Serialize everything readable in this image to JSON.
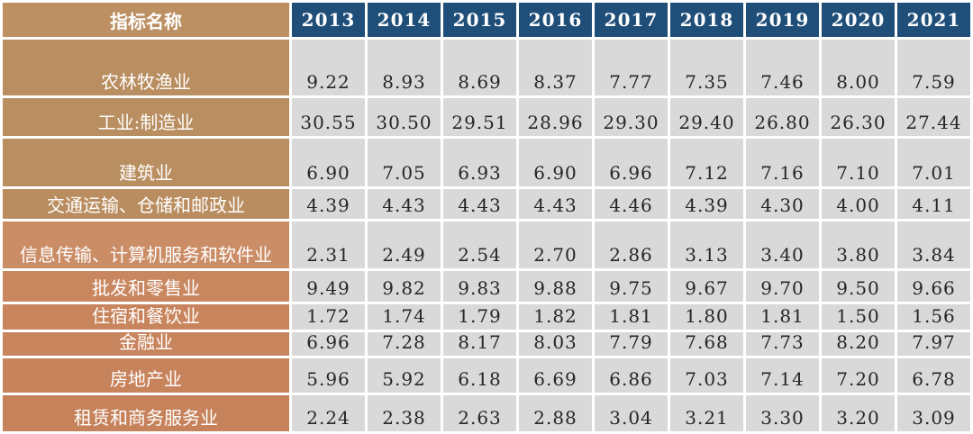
{
  "table": {
    "header": {
      "label": "指标名称",
      "label_bg": "#bc9062",
      "year_bg": "#1f4e79",
      "years": [
        "2013",
        "2014",
        "2015",
        "2016",
        "2017",
        "2018",
        "2019",
        "2020",
        "2021"
      ]
    },
    "value_cell_bg": "#d9d9d9",
    "value_text_color": "#262626",
    "rows": [
      {
        "label": "农林牧渔业",
        "label_bg": "#b98e61",
        "values": [
          "9.22",
          "8.93",
          "8.69",
          "8.37",
          "7.77",
          "7.35",
          "7.46",
          "8.00",
          "7.59"
        ]
      },
      {
        "label": "工业:制造业",
        "label_bg": "#b98e61",
        "values": [
          "30.55",
          "30.50",
          "29.51",
          "28.96",
          "29.30",
          "29.40",
          "26.80",
          "26.30",
          "27.44"
        ]
      },
      {
        "label": "建筑业",
        "label_bg": "#b98e61",
        "values": [
          "6.90",
          "7.05",
          "6.93",
          "6.90",
          "6.96",
          "7.12",
          "7.16",
          "7.10",
          "7.01"
        ]
      },
      {
        "label": "交通运输、仓储和邮政业",
        "label_bg": "#ba8d60",
        "values": [
          "4.39",
          "4.43",
          "4.43",
          "4.43",
          "4.46",
          "4.39",
          "4.30",
          "4.00",
          "4.11"
        ]
      },
      {
        "label": "信息传输、计算机服务和软件业",
        "label_bg": "#cb8d66",
        "values": [
          "2.31",
          "2.49",
          "2.54",
          "2.70",
          "2.86",
          "3.13",
          "3.40",
          "3.80",
          "3.84"
        ]
      },
      {
        "label": "批发和零售业",
        "label_bg": "#c8875f",
        "values": [
          "9.49",
          "9.82",
          "9.83",
          "9.88",
          "9.75",
          "9.67",
          "9.70",
          "9.50",
          "9.66"
        ]
      },
      {
        "label": "住宿和餐饮业",
        "label_bg": "#c8855d",
        "values": [
          "1.72",
          "1.74",
          "1.79",
          "1.82",
          "1.81",
          "1.80",
          "1.81",
          "1.50",
          "1.56"
        ]
      },
      {
        "label": "金融业",
        "label_bg": "#c8845c",
        "values": [
          "6.96",
          "7.28",
          "8.17",
          "8.03",
          "7.79",
          "7.68",
          "7.73",
          "8.20",
          "7.97"
        ]
      },
      {
        "label": "房地产业",
        "label_bg": "#c7835b",
        "values": [
          "5.96",
          "5.92",
          "6.18",
          "6.69",
          "6.86",
          "7.03",
          "7.14",
          "7.20",
          "6.78"
        ]
      },
      {
        "label": "租赁和商务服务业",
        "label_bg": "#c6825a",
        "values": [
          "2.24",
          "2.38",
          "2.63",
          "2.88",
          "3.04",
          "3.21",
          "3.30",
          "3.20",
          "3.09"
        ]
      }
    ]
  },
  "chart_data": {
    "type": "table",
    "title": "",
    "categories": [
      "2013",
      "2014",
      "2015",
      "2016",
      "2017",
      "2018",
      "2019",
      "2020",
      "2021"
    ],
    "row_header_label": "指标名称",
    "series": [
      {
        "name": "农林牧渔业",
        "values": [
          9.22,
          8.93,
          8.69,
          8.37,
          7.77,
          7.35,
          7.46,
          8.0,
          7.59
        ]
      },
      {
        "name": "工业:制造业",
        "values": [
          30.55,
          30.5,
          29.51,
          28.96,
          29.3,
          29.4,
          26.8,
          26.3,
          27.44
        ]
      },
      {
        "name": "建筑业",
        "values": [
          6.9,
          7.05,
          6.93,
          6.9,
          6.96,
          7.12,
          7.16,
          7.1,
          7.01
        ]
      },
      {
        "name": "交通运输、仓储和邮政业",
        "values": [
          4.39,
          4.43,
          4.43,
          4.43,
          4.46,
          4.39,
          4.3,
          4.0,
          4.11
        ]
      },
      {
        "name": "信息传输、计算机服务和软件业",
        "values": [
          2.31,
          2.49,
          2.54,
          2.7,
          2.86,
          3.13,
          3.4,
          3.8,
          3.84
        ]
      },
      {
        "name": "批发和零售业",
        "values": [
          9.49,
          9.82,
          9.83,
          9.88,
          9.75,
          9.67,
          9.7,
          9.5,
          9.66
        ]
      },
      {
        "name": "住宿和餐饮业",
        "values": [
          1.72,
          1.74,
          1.79,
          1.82,
          1.81,
          1.8,
          1.81,
          1.5,
          1.56
        ]
      },
      {
        "name": "金融业",
        "values": [
          6.96,
          7.28,
          8.17,
          8.03,
          7.79,
          7.68,
          7.73,
          8.2,
          7.97
        ]
      },
      {
        "name": "房地产业",
        "values": [
          5.96,
          5.92,
          6.18,
          6.69,
          6.86,
          7.03,
          7.14,
          7.2,
          6.78
        ]
      },
      {
        "name": "租赁和商务服务业",
        "values": [
          2.24,
          2.38,
          2.63,
          2.88,
          3.04,
          3.21,
          3.3,
          3.2,
          3.09
        ]
      }
    ]
  }
}
